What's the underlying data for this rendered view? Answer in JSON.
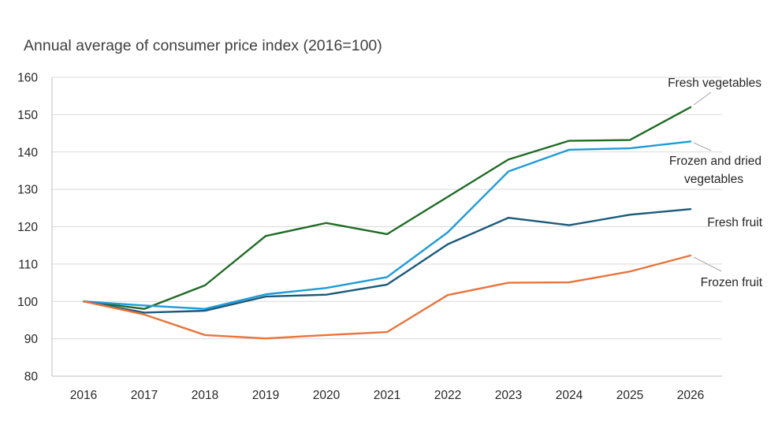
{
  "chart_data": {
    "type": "line",
    "title": "Annual average of consumer price index (2016=100)",
    "xlabel": "",
    "ylabel": "",
    "categories": [
      "2016",
      "2017",
      "2018",
      "2019",
      "2020",
      "2021",
      "2022",
      "2023",
      "2024",
      "2025",
      "2026"
    ],
    "ylim": [
      80,
      160
    ],
    "yticks": [
      "80",
      "90",
      "100",
      "110",
      "120",
      "130",
      "140",
      "150",
      "160"
    ],
    "grid": true,
    "legend": "direct labels at line ends",
    "series": [
      {
        "name": "Fresh vegetables",
        "color": "#1f6b24",
        "values": [
          100,
          98,
          104.3,
          117.5,
          121,
          118,
          128,
          138,
          143,
          143.2,
          152
        ]
      },
      {
        "name": "Frozen and dried vegetables",
        "color": "#1f9bd7",
        "values": [
          100,
          98.9,
          98,
          101.9,
          103.6,
          106.5,
          118.5,
          134.8,
          140.6,
          141,
          142.8
        ]
      },
      {
        "name": "Fresh fruit",
        "color": "#1b5a7a",
        "values": [
          100,
          97,
          97.5,
          101.3,
          101.8,
          104.5,
          115.3,
          122.4,
          120.4,
          123.2,
          124.7
        ]
      },
      {
        "name": "Frozen fruit",
        "color": "#e8743b",
        "values": [
          100,
          96.5,
          91,
          90.1,
          91,
          91.8,
          101.7,
          105,
          105.1,
          108,
          112.3
        ]
      }
    ]
  }
}
